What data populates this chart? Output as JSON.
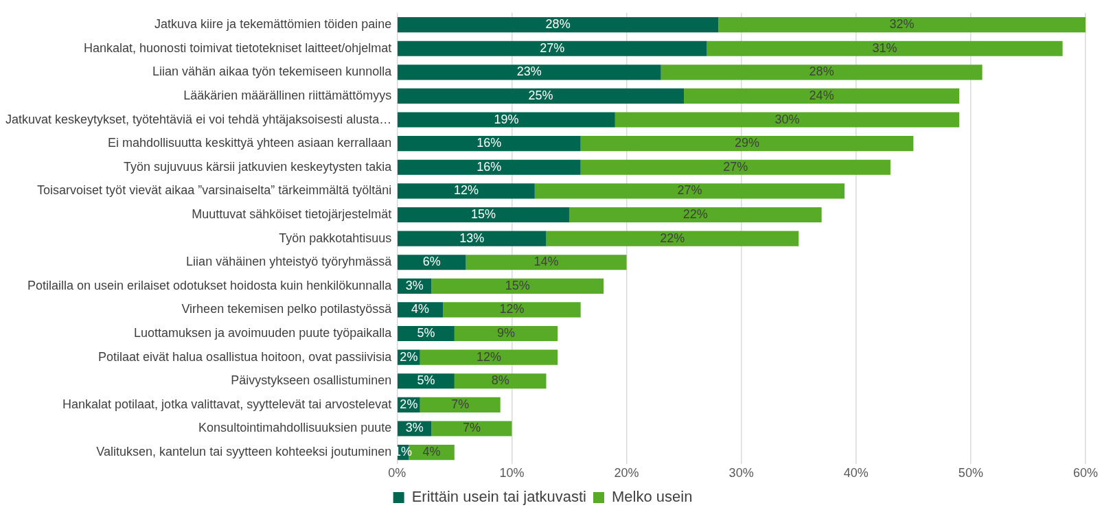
{
  "chart_data": {
    "type": "bar",
    "orientation": "horizontal",
    "stacked": true,
    "categories": [
      "Jatkuva kiire ja tekemättömien töiden paine",
      "Hankalat, huonosti toimivat tietotekniset laitteet/ohjelmat",
      "Liian vähän aikaa työn tekemiseen kunnolla",
      "Lääkärien määrällinen riittämättömyys",
      "Jatkuvat keskeytykset, työtehtäviä ei voi tehdä yhtäjaksoisesti alusta…",
      "Ei mahdollisuutta keskittyä yhteen asiaan kerrallaan",
      "Työn sujuvuus kärsii jatkuvien keskeytysten takia",
      "Toisarvoiset työt vievät aikaa ”varsinaiselta” tärkeimmältä työltäni",
      "Muuttuvat sähköiset tietojärjestelmät",
      "Työn pakkotahtisuus",
      "Liian vähäinen yhteistyö työryhmässä",
      "Potilailla on usein erilaiset odotukset hoidosta kuin henkilökunnalla",
      "Virheen tekemisen pelko potilastyössä",
      "Luottamuksen ja avoimuuden puute työpaikalla",
      "Potilaat eivät halua osallistua hoitoon, ovat passiivisia",
      "Päivystykseen osallistuminen",
      "Hankalat potilaat, jotka valittavat, syyttelevät tai arvostelevat",
      "Konsultointimahdollisuuksien puute",
      "Valituksen, kantelun tai syytteen kohteeksi joutuminen"
    ],
    "series": [
      {
        "name": "Erittäin usein tai jatkuvasti",
        "color": "#00664f",
        "values": [
          28,
          27,
          23,
          25,
          19,
          16,
          16,
          12,
          15,
          13,
          6,
          3,
          4,
          5,
          2,
          5,
          2,
          3,
          1
        ],
        "value_labels": [
          "28%",
          "27%",
          "23%",
          "25%",
          "19%",
          "16%",
          "16%",
          "12%",
          "15%",
          "13%",
          "6%",
          "3%",
          "4%",
          "5%",
          "2%",
          "5%",
          "2%",
          "3%",
          "1%"
        ]
      },
      {
        "name": "Melko usein",
        "color": "#57ab27",
        "values": [
          32,
          31,
          28,
          24,
          30,
          29,
          27,
          27,
          22,
          22,
          14,
          15,
          12,
          9,
          12,
          8,
          7,
          7,
          4
        ],
        "value_labels": [
          "32%",
          "31%",
          "28%",
          "24%",
          "30%",
          "29%",
          "27%",
          "27%",
          "22%",
          "22%",
          "14%",
          "15%",
          "12%",
          "9%",
          "12%",
          "8%",
          "7%",
          "7%",
          "4%"
        ]
      }
    ],
    "xlim": [
      0,
      60
    ],
    "xticks": [
      {
        "value": 0,
        "label": "0%"
      },
      {
        "value": 10,
        "label": "10%"
      },
      {
        "value": 20,
        "label": "20%"
      },
      {
        "value": 30,
        "label": "30%"
      },
      {
        "value": 40,
        "label": "40%"
      },
      {
        "value": 50,
        "label": "50%"
      },
      {
        "value": 60,
        "label": "60%"
      }
    ],
    "grid": "x",
    "legend": "bottom"
  }
}
